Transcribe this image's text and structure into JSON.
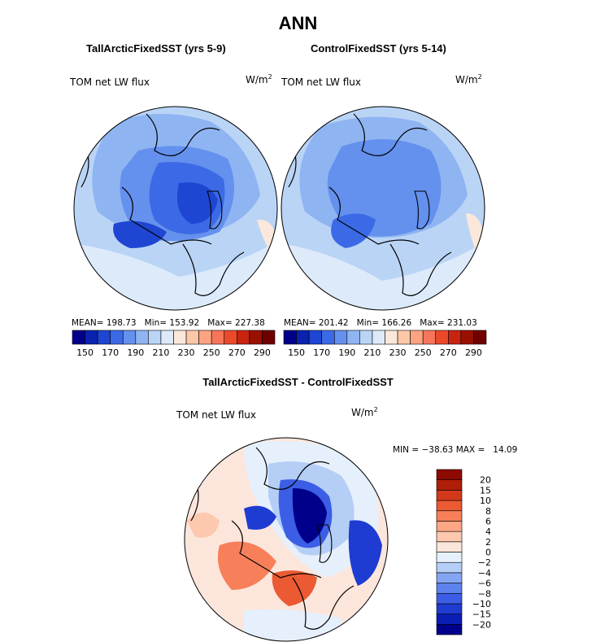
{
  "figure": {
    "title": "ANN",
    "units_base": "W/m",
    "units_exp": "2"
  },
  "panels": [
    {
      "title": "TallArcticFixedSST (yrs 5-9)",
      "variable": "TOM net LW flux",
      "mean_label": "MEAN=",
      "mean": "198.73",
      "min_label": "Min=",
      "min": "153.92",
      "max_label": "Max=",
      "max": "227.38"
    },
    {
      "title": "ControlFixedSST (yrs 5-14)",
      "variable": "TOM net LW flux",
      "mean_label": "MEAN=",
      "mean": "201.42",
      "min_label": "Min=",
      "min": "166.26",
      "max_label": "Max=",
      "max": "231.03"
    },
    {
      "title": "TallArcticFixedSST - ControlFixedSST",
      "variable": "TOM net LW flux",
      "min_label": "MIN =",
      "min": "−38.63",
      "max_label": "MAX =",
      "max": "14.09"
    }
  ],
  "chart_data": [
    {
      "type": "heatmap",
      "projection": "north polar stereographic",
      "title": "TallArcticFixedSST (yrs 5-9)",
      "variable": "TOM net LW flux",
      "units": "W/m^2",
      "stats": {
        "mean": 198.73,
        "min": 153.92,
        "max": 227.38
      },
      "colorbar": {
        "orientation": "horizontal",
        "levels": [
          150,
          160,
          170,
          180,
          190,
          200,
          210,
          220,
          230,
          240,
          250,
          260,
          270,
          280,
          290
        ],
        "tick_labels": [
          "150",
          "170",
          "190",
          "210",
          "230",
          "250",
          "270",
          "290"
        ],
        "colors": [
          "#00008b",
          "#0a22b0",
          "#1e46d2",
          "#3c6ae6",
          "#6490ee",
          "#8eb4f2",
          "#bad4f6",
          "#dceafa",
          "#fbe8da",
          "#fcc8a8",
          "#fca482",
          "#f7765a",
          "#eb4a2a",
          "#c82410",
          "#9a1000",
          "#700000"
        ]
      }
    },
    {
      "type": "heatmap",
      "projection": "north polar stereographic",
      "title": "ControlFixedSST (yrs 5-14)",
      "variable": "TOM net LW flux",
      "units": "W/m^2",
      "stats": {
        "mean": 201.42,
        "min": 166.26,
        "max": 231.03
      },
      "colorbar": {
        "orientation": "horizontal",
        "levels": [
          150,
          160,
          170,
          180,
          190,
          200,
          210,
          220,
          230,
          240,
          250,
          260,
          270,
          280,
          290
        ],
        "tick_labels": [
          "150",
          "170",
          "190",
          "210",
          "230",
          "250",
          "270",
          "290"
        ],
        "colors": [
          "#00008b",
          "#0a22b0",
          "#1e46d2",
          "#3c6ae6",
          "#6490ee",
          "#8eb4f2",
          "#bad4f6",
          "#dceafa",
          "#fbe8da",
          "#fcc8a8",
          "#fca482",
          "#f7765a",
          "#eb4a2a",
          "#c82410",
          "#9a1000",
          "#700000"
        ]
      }
    },
    {
      "type": "heatmap",
      "projection": "north polar stereographic",
      "title": "TallArcticFixedSST - ControlFixedSST",
      "variable": "TOM net LW flux",
      "units": "W/m^2",
      "stats": {
        "min": -38.63,
        "max": 14.09
      },
      "colorbar": {
        "orientation": "vertical",
        "levels": [
          -20,
          -15,
          -10,
          -8,
          -6,
          -4,
          -2,
          0,
          2,
          4,
          6,
          8,
          10,
          15,
          20
        ],
        "tick_labels": [
          "−20",
          "−15",
          "−10",
          "−8",
          "−6",
          "−4",
          "−2",
          "0",
          "2",
          "4",
          "6",
          "8",
          "10",
          "15",
          "20"
        ],
        "colors": [
          "#00008b",
          "#0a1eb4",
          "#1e3cd2",
          "#3c5ee6",
          "#5c82ee",
          "#84a6f2",
          "#b4cef6",
          "#e6f0fc",
          "#fce6dc",
          "#fcc8ae",
          "#fca684",
          "#f7805a",
          "#eb5a32",
          "#d2381a",
          "#b01e08",
          "#8c0a00"
        ]
      }
    }
  ]
}
